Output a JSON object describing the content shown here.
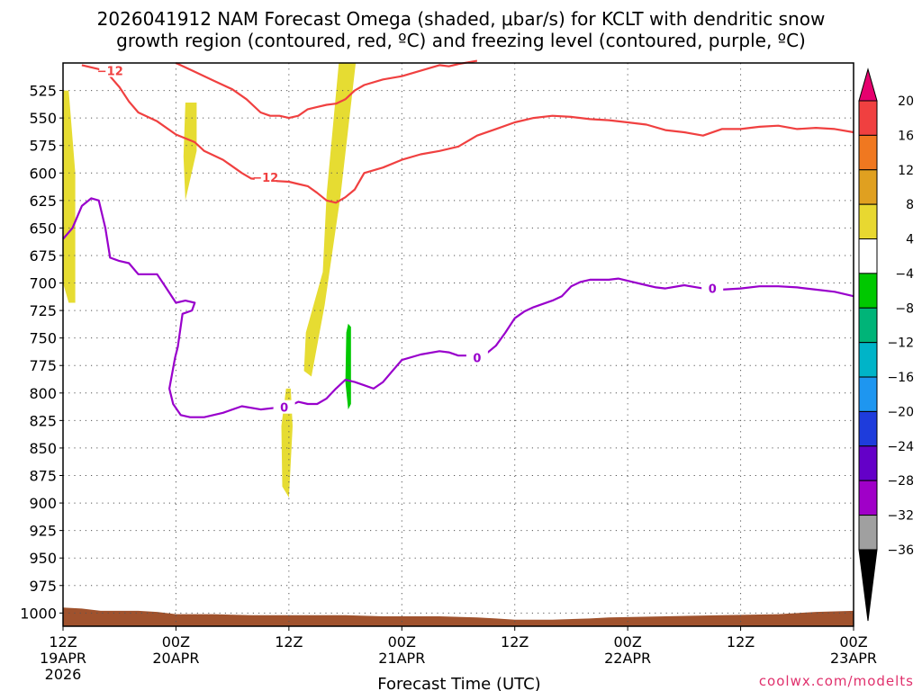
{
  "title": {
    "line1": "2026041912 NAM Forecast Omega (shaded, μbar/s) for KCLT with dendritic snow",
    "line2": "growth region (contoured, red, ºC) and freezing level (contoured, purple, ºC)"
  },
  "credit": "coolwx.com/modelts",
  "colors": {
    "dendritic": "#f04040",
    "freezing": "#9900cc",
    "terrain": "#a0522d",
    "grid": "#555555"
  },
  "chart_data": {
    "type": "heatmap",
    "x_axis": {
      "label": "Forecast Time (UTC)",
      "range_hours": [
        0,
        84
      ],
      "ticks": [
        {
          "hours": 0,
          "label": "12Z",
          "sub": "19APR",
          "sub2": "2026"
        },
        {
          "hours": 12,
          "label": "00Z",
          "sub": "20APR"
        },
        {
          "hours": 24,
          "label": "12Z",
          "sub": ""
        },
        {
          "hours": 36,
          "label": "00Z",
          "sub": "21APR"
        },
        {
          "hours": 48,
          "label": "12Z",
          "sub": ""
        },
        {
          "hours": 60,
          "label": "00Z",
          "sub": "22APR"
        },
        {
          "hours": 72,
          "label": "12Z",
          "sub": ""
        },
        {
          "hours": 84,
          "label": "00Z",
          "sub": "23APR"
        }
      ]
    },
    "y_axis": {
      "units": "mb",
      "inverted": true,
      "range": [
        500,
        1012
      ],
      "ticks": [
        525,
        550,
        575,
        600,
        625,
        650,
        675,
        700,
        725,
        750,
        775,
        800,
        825,
        850,
        875,
        900,
        925,
        950,
        975,
        1000
      ]
    },
    "grid": true,
    "colorbar": {
      "labels": [
        "20",
        "16",
        "12",
        "8",
        "4",
        "−4",
        "−8",
        "−12",
        "−16",
        "−20",
        "−24",
        "−28",
        "−32",
        "−36"
      ],
      "colors": [
        "#f04040",
        "#f07820",
        "#e0a020",
        "#e8d830",
        "#ffffff",
        "#00c800",
        "#00b478",
        "#00b4c8",
        "#1e96f0",
        "#1e3cdc",
        "#6400c8",
        "#a000c8",
        "#a0a0a0"
      ],
      "top_arrow": "#e6006e",
      "bottom_arrow": "#000000"
    },
    "omega_shading": [
      {
        "value": 4,
        "color": "#e6dc32",
        "polygon": [
          [
            0.6,
            525
          ],
          [
            1.3,
            600
          ],
          [
            1.3,
            718
          ],
          [
            0.6,
            718
          ],
          [
            0,
            700
          ],
          [
            0,
            525
          ]
        ]
      },
      {
        "value": 4,
        "color": "#e6dc32",
        "polygon": [
          [
            13.0,
            536
          ],
          [
            14.2,
            536
          ],
          [
            14.2,
            580
          ],
          [
            13.0,
            625
          ],
          [
            12.8,
            585
          ]
        ]
      },
      {
        "value": 4,
        "color": "#e6dc32",
        "polygon": [
          [
            29.3,
            500
          ],
          [
            31.1,
            500
          ],
          [
            29.5,
            620
          ],
          [
            27.8,
            720
          ],
          [
            26.4,
            785
          ],
          [
            25.6,
            780
          ],
          [
            25.8,
            745
          ],
          [
            27.6,
            690
          ],
          [
            28.0,
            620
          ]
        ]
      },
      {
        "value": 4,
        "color": "#e6dc32",
        "polygon": [
          [
            24.2,
            796
          ],
          [
            24.4,
            830
          ],
          [
            24.0,
            895
          ],
          [
            23.3,
            885
          ],
          [
            23.2,
            830
          ],
          [
            23.7,
            796
          ]
        ]
      },
      {
        "value": -4,
        "color": "#00c800",
        "polygon": [
          [
            30.3,
            737
          ],
          [
            30.6,
            740
          ],
          [
            30.6,
            810
          ],
          [
            30.3,
            815
          ],
          [
            30.0,
            790
          ],
          [
            30.1,
            745
          ]
        ]
      }
    ],
    "dendritic_contours": [
      {
        "label": "−12",
        "label_at": [
          5,
          507
        ],
        "points": [
          [
            2,
            502
          ],
          [
            4.5,
            507
          ],
          [
            6,
            522
          ],
          [
            7,
            535
          ],
          [
            8,
            545
          ],
          [
            10,
            553
          ],
          [
            12,
            565
          ],
          [
            14,
            572
          ],
          [
            15,
            580
          ],
          [
            17,
            588
          ],
          [
            19,
            600
          ],
          [
            20,
            605
          ],
          [
            22,
            607
          ],
          [
            24,
            608
          ],
          [
            25,
            610
          ],
          [
            26,
            612
          ],
          [
            27,
            618
          ],
          [
            28,
            625
          ],
          [
            29,
            627
          ],
          [
            30,
            622
          ],
          [
            31,
            615
          ],
          [
            32,
            600
          ],
          [
            34,
            595
          ],
          [
            36,
            588
          ],
          [
            38,
            583
          ],
          [
            40,
            580
          ],
          [
            42,
            576
          ],
          [
            44,
            566
          ],
          [
            46,
            560
          ],
          [
            48,
            554
          ],
          [
            50,
            550
          ],
          [
            52,
            548
          ],
          [
            54,
            549
          ],
          [
            56,
            551
          ],
          [
            58,
            552
          ],
          [
            60,
            554
          ],
          [
            62,
            556
          ],
          [
            64,
            561
          ],
          [
            66,
            563
          ],
          [
            68,
            566
          ],
          [
            70,
            560
          ],
          [
            72,
            560
          ],
          [
            74,
            558
          ],
          [
            76,
            557
          ],
          [
            78,
            560
          ],
          [
            80,
            559
          ],
          [
            82,
            560
          ],
          [
            84,
            563
          ]
        ]
      },
      {
        "label": "−12",
        "label_at": [
          21.5,
          604
        ],
        "points": [
          [
            12,
            500
          ],
          [
            14,
            508
          ],
          [
            16,
            516
          ],
          [
            18,
            524
          ],
          [
            19.5,
            533
          ],
          [
            21,
            545
          ],
          [
            22,
            548
          ],
          [
            23,
            548
          ],
          [
            24,
            550
          ],
          [
            25,
            548
          ],
          [
            26,
            542
          ],
          [
            27,
            540
          ],
          [
            28,
            538
          ],
          [
            29,
            537
          ],
          [
            30,
            533
          ],
          [
            31,
            525
          ],
          [
            32,
            520
          ],
          [
            34,
            515
          ],
          [
            36,
            512
          ],
          [
            38,
            507
          ],
          [
            40,
            502
          ],
          [
            41,
            503
          ],
          [
            42,
            501
          ],
          [
            44,
            498
          ]
        ]
      }
    ],
    "freezing_contours": [
      {
        "label": "0",
        "label_at": [
          [
            23.5,
            813
          ],
          [
            44,
            768
          ],
          [
            69,
            705
          ]
        ],
        "points": [
          [
            0,
            660
          ],
          [
            1,
            650
          ],
          [
            2,
            630
          ],
          [
            3,
            623
          ],
          [
            3.8,
            625
          ],
          [
            4.5,
            650
          ],
          [
            5,
            677
          ],
          [
            6,
            680
          ],
          [
            7,
            682
          ],
          [
            8,
            692
          ],
          [
            10,
            692
          ],
          [
            11,
            705
          ],
          [
            12,
            718
          ],
          [
            13,
            716
          ],
          [
            14,
            718
          ],
          [
            13.7,
            725
          ],
          [
            12.7,
            728
          ],
          [
            12.2,
            758
          ],
          [
            11.9,
            768
          ],
          [
            11.3,
            796
          ],
          [
            11.7,
            810
          ],
          [
            12.5,
            820
          ],
          [
            13.5,
            822
          ],
          [
            15,
            822
          ],
          [
            17,
            818
          ],
          [
            19,
            812
          ],
          [
            21,
            815
          ],
          [
            23,
            813
          ],
          [
            24,
            812
          ],
          [
            25,
            808
          ],
          [
            26,
            810
          ],
          [
            27,
            810
          ],
          [
            28,
            805
          ],
          [
            29,
            796
          ],
          [
            30,
            788
          ],
          [
            31,
            790
          ],
          [
            32,
            793
          ],
          [
            33,
            796
          ],
          [
            34,
            790
          ],
          [
            35,
            780
          ],
          [
            36,
            770
          ],
          [
            38,
            765
          ],
          [
            40,
            762
          ],
          [
            41,
            763
          ],
          [
            42,
            766
          ],
          [
            44,
            766
          ],
          [
            45,
            764
          ],
          [
            46,
            757
          ],
          [
            47,
            745
          ],
          [
            48,
            732
          ],
          [
            49,
            726
          ],
          [
            50,
            722
          ],
          [
            52,
            716
          ],
          [
            53,
            712
          ],
          [
            54,
            703
          ],
          [
            55,
            699
          ],
          [
            56,
            697
          ],
          [
            58,
            697
          ],
          [
            59,
            696
          ],
          [
            60,
            698
          ],
          [
            62,
            702
          ],
          [
            63,
            704
          ],
          [
            64,
            705
          ],
          [
            66,
            702
          ],
          [
            68,
            705
          ],
          [
            70,
            706
          ],
          [
            72,
            705
          ],
          [
            74,
            703
          ],
          [
            76,
            703
          ],
          [
            78,
            704
          ],
          [
            80,
            706
          ],
          [
            82,
            708
          ],
          [
            84,
            712
          ]
        ]
      }
    ],
    "surface_terrain": [
      [
        0,
        995
      ],
      [
        2,
        996
      ],
      [
        4,
        998
      ],
      [
        8,
        998
      ],
      [
        10,
        999
      ],
      [
        12,
        1001
      ],
      [
        16,
        1001
      ],
      [
        20,
        1002
      ],
      [
        30,
        1002
      ],
      [
        34,
        1003
      ],
      [
        40,
        1003
      ],
      [
        44,
        1004
      ],
      [
        46,
        1005
      ],
      [
        48,
        1006
      ],
      [
        52,
        1006
      ],
      [
        56,
        1005
      ],
      [
        58,
        1004
      ],
      [
        64,
        1003
      ],
      [
        70,
        1002
      ],
      [
        76,
        1001
      ],
      [
        80,
        999
      ],
      [
        84,
        998
      ]
    ]
  }
}
